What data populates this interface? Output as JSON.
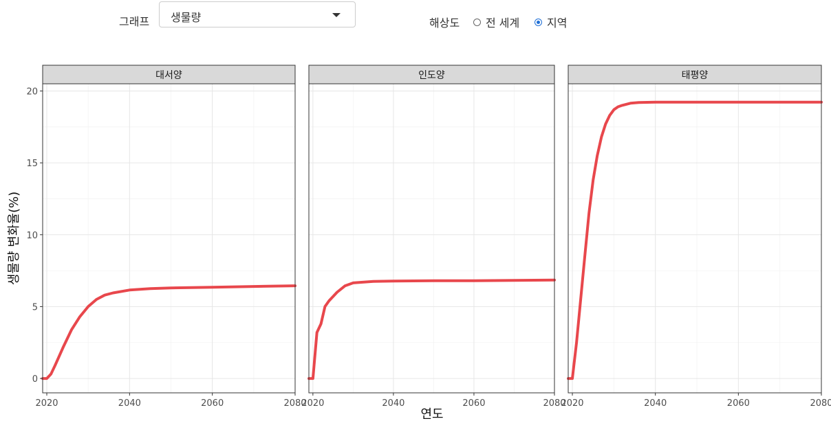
{
  "controls": {
    "graph_label": "그래프",
    "graph_selected": "생물량",
    "resolution_label": "해상도",
    "resolution_options": [
      {
        "label": "전 세계",
        "checked": false
      },
      {
        "label": "지역",
        "checked": true
      }
    ]
  },
  "chart_data": {
    "type": "line",
    "xlabel": "연도",
    "ylabel": "생물량 변화율(%)",
    "xlim": [
      2019,
      2080
    ],
    "ylim": [
      -1,
      20.5
    ],
    "x_ticks": [
      2020,
      2040,
      2060,
      2080
    ],
    "y_ticks": [
      0,
      5,
      10,
      15,
      20
    ],
    "grid": true,
    "line_color": "#e8474c",
    "panels": [
      {
        "name": "대서양",
        "x": [
          2019,
          2020,
          2021,
          2022,
          2024,
          2026,
          2028,
          2030,
          2032,
          2034,
          2036,
          2040,
          2045,
          2050,
          2060,
          2070,
          2080
        ],
        "y": [
          0,
          0,
          0.3,
          0.9,
          2.2,
          3.4,
          4.3,
          5.0,
          5.5,
          5.8,
          5.95,
          6.15,
          6.25,
          6.3,
          6.35,
          6.4,
          6.45
        ]
      },
      {
        "name": "인도양",
        "x": [
          2019,
          2020,
          2021,
          2022,
          2023,
          2024,
          2026,
          2028,
          2030,
          2035,
          2040,
          2050,
          2060,
          2070,
          2080
        ],
        "y": [
          0,
          0,
          3.2,
          3.8,
          5.0,
          5.4,
          6.0,
          6.45,
          6.65,
          6.75,
          6.78,
          6.8,
          6.8,
          6.82,
          6.85
        ]
      },
      {
        "name": "태평양",
        "x": [
          2019,
          2020,
          2021,
          2022,
          2023,
          2024,
          2025,
          2026,
          2027,
          2028,
          2029,
          2030,
          2031,
          2032,
          2034,
          2036,
          2040,
          2050,
          2060,
          2080
        ],
        "y": [
          0,
          0,
          2.5,
          5.5,
          8.5,
          11.5,
          13.8,
          15.5,
          16.8,
          17.7,
          18.3,
          18.7,
          18.9,
          19.0,
          19.15,
          19.2,
          19.22,
          19.22,
          19.22,
          19.22
        ]
      }
    ]
  }
}
